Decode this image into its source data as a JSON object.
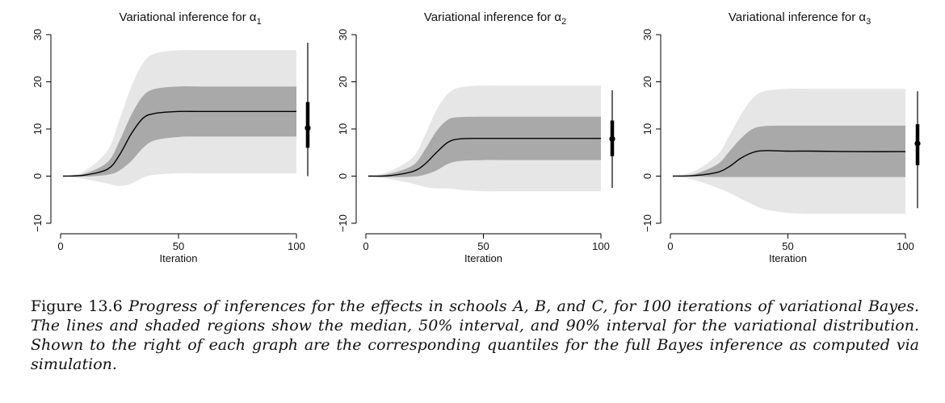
{
  "caption": {
    "label": "Figure 13.6",
    "text": "Progress of inferences for the effects in schools A, B, and C, for 100 iterations of variational Bayes. The lines and shaded regions show the median, 50% interval, and 90% interval for the variational distribution. Shown to the right of each graph are the corresponding quantiles for the full Bayes inference as computed via simulation."
  },
  "colors": {
    "band90": "#e6e6e6",
    "band50": "#a9a9a9",
    "median": "#000000",
    "axis": "#000000"
  },
  "chart_data": [
    {
      "type": "area",
      "title_prefix": "Variational inference for α",
      "title_sub": "1",
      "xlabel": "Iteration",
      "ylabel": "",
      "xlim": [
        0,
        100
      ],
      "ylim": [
        -12,
        32
      ],
      "xticks": [
        0,
        50,
        100
      ],
      "yticks": [
        -10,
        0,
        10,
        20,
        30
      ],
      "x": [
        1,
        10,
        20,
        25,
        30,
        35,
        40,
        50,
        60,
        80,
        100
      ],
      "median": [
        0,
        0.2,
        1.5,
        4.5,
        9.0,
        12.3,
        13.3,
        13.7,
        13.7,
        13.7,
        13.7
      ],
      "lo50": [
        0,
        -0.1,
        0.3,
        1.2,
        3.2,
        6.0,
        7.6,
        8.3,
        8.4,
        8.4,
        8.4
      ],
      "hi50": [
        0,
        0.5,
        3.0,
        7.5,
        13.0,
        17.0,
        18.5,
        19.0,
        19.0,
        19.0,
        19.0
      ],
      "lo90": [
        0,
        -0.6,
        -1.6,
        -2.1,
        -1.6,
        -0.3,
        0.3,
        0.6,
        0.6,
        0.6,
        0.6
      ],
      "hi90": [
        0,
        1.0,
        5.5,
        12.0,
        19.0,
        24.0,
        26.0,
        26.7,
        26.7,
        26.7,
        26.7
      ],
      "full_bayes": {
        "median": 10.2,
        "q25": 6.0,
        "q75": 15.7,
        "q05": 0.0,
        "q95": 28.3
      }
    },
    {
      "type": "area",
      "title_prefix": "Variational inference for α",
      "title_sub": "2",
      "xlabel": "Iteration",
      "ylabel": "",
      "xlim": [
        0,
        100
      ],
      "ylim": [
        -12,
        32
      ],
      "xticks": [
        0,
        50,
        100
      ],
      "yticks": [
        -10,
        0,
        10,
        20,
        30
      ],
      "x": [
        1,
        10,
        20,
        25,
        30,
        35,
        40,
        50,
        60,
        80,
        100
      ],
      "median": [
        0,
        0.1,
        1.0,
        2.5,
        5.0,
        7.2,
        7.9,
        8.0,
        8.0,
        8.0,
        8.0
      ],
      "lo50": [
        0,
        -0.2,
        -0.1,
        0.3,
        1.2,
        2.6,
        3.2,
        3.4,
        3.4,
        3.4,
        3.4
      ],
      "hi50": [
        0,
        0.5,
        2.3,
        5.5,
        9.5,
        12.0,
        12.5,
        12.6,
        12.6,
        12.6,
        12.6
      ],
      "lo90": [
        0,
        -0.6,
        -1.6,
        -2.3,
        -2.6,
        -2.6,
        -2.9,
        -3.2,
        -3.2,
        -3.2,
        -3.2
      ],
      "hi90": [
        0,
        1.0,
        4.0,
        8.5,
        14.0,
        17.5,
        18.8,
        19.2,
        19.2,
        19.2,
        19.2
      ],
      "full_bayes": {
        "median": 7.9,
        "q25": 4.2,
        "q75": 11.8,
        "q05": -2.5,
        "q95": 18.2
      }
    },
    {
      "type": "area",
      "title_prefix": "Variational inference for α",
      "title_sub": "3",
      "xlabel": "Iteration",
      "ylabel": "",
      "xlim": [
        0,
        100
      ],
      "ylim": [
        -12,
        32
      ],
      "xticks": [
        0,
        50,
        100
      ],
      "yticks": [
        -10,
        0,
        10,
        20,
        30
      ],
      "x": [
        1,
        10,
        20,
        25,
        30,
        35,
        40,
        50,
        60,
        80,
        100
      ],
      "median": [
        0,
        0.1,
        0.8,
        2.0,
        3.8,
        5.0,
        5.4,
        5.3,
        5.3,
        5.2,
        5.2
      ],
      "lo50": [
        0,
        -0.1,
        -0.2,
        -0.2,
        -0.2,
        -0.2,
        -0.2,
        -0.2,
        -0.2,
        -0.2,
        -0.2
      ],
      "hi50": [
        0,
        0.4,
        2.5,
        5.2,
        8.0,
        10.0,
        10.6,
        10.7,
        10.7,
        10.7,
        10.7
      ],
      "lo90": [
        0,
        -0.8,
        -2.5,
        -3.5,
        -4.8,
        -6.0,
        -7.0,
        -7.8,
        -8.0,
        -8.0,
        -8.0
      ],
      "hi90": [
        0,
        1.0,
        4.5,
        8.5,
        13.0,
        16.5,
        18.0,
        18.5,
        18.5,
        18.5,
        18.5
      ],
      "full_bayes": {
        "median": 6.9,
        "q25": 2.3,
        "q75": 11.0,
        "q05": -6.8,
        "q95": 18.0
      }
    }
  ]
}
